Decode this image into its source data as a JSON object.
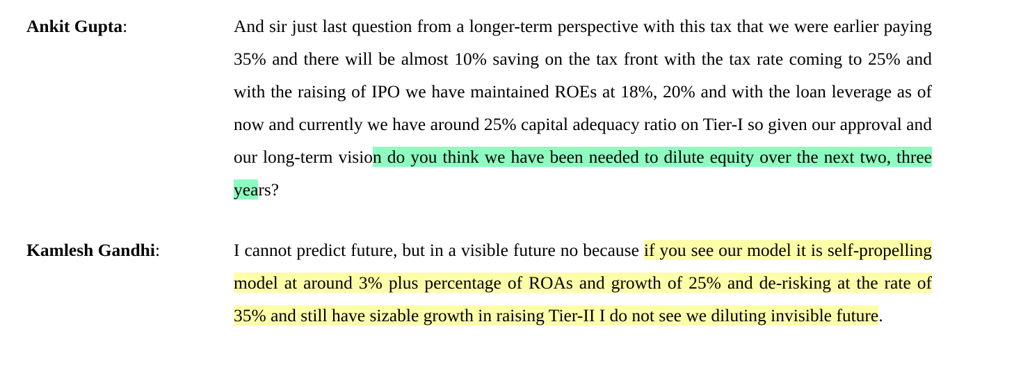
{
  "transcript": [
    {
      "speaker": "Ankit Gupta",
      "colon": ":",
      "text_plain": "And sir just last question from a longer-term perspective with this tax that we were earlier paying 35% and there will be almost 10% saving on the tax front with the tax rate coming to 25% and with the raising of IPO we have maintained ROEs at 18%, 20% and with the loan leverage as of now and currently we have around 25% capital adequacy ratio on Tier-I so given our approval and our long-term visio",
      "text_highlight": "n do you think we have been needed to dilute equity over the next two, three yea",
      "text_tail": "rs?",
      "highlight_color": "#8cfcc0"
    },
    {
      "speaker": "Kamlesh Gandhi",
      "colon": ":",
      "text_plain": "I cannot predict future, but in a visible future no because ",
      "text_highlight": "if you see our model it is self-propelling model at around 3% plus percentage of ROAs and growth of 25% and de-risking at the rate of 35% and still have sizable growth in raising Tier-II I do not see we diluting invisible future",
      "text_tail": ".",
      "highlight_color": "#fdfea8"
    }
  ]
}
